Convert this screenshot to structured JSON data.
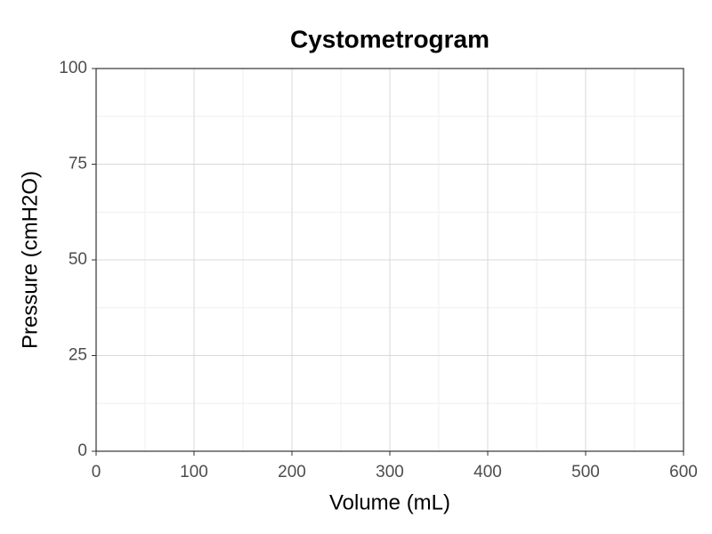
{
  "chart_data": {
    "type": "line",
    "title": "Cystometrogram",
    "x_label": "Volume (mL)",
    "y_label": "Pressure (cmH2O)",
    "series": [],
    "xlim": [
      0,
      600
    ],
    "xticks": [
      0,
      100,
      200,
      300,
      400,
      500,
      600
    ],
    "ylim": [
      0,
      100
    ],
    "yticks": [
      0,
      25,
      50,
      75,
      100
    ],
    "grid": true,
    "minor_grid": true
  }
}
